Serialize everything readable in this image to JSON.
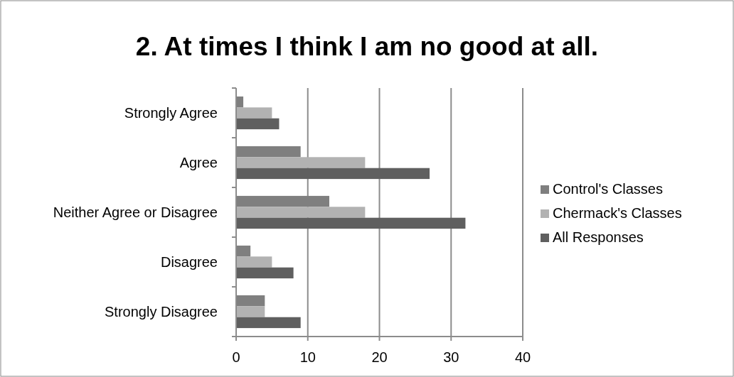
{
  "chart_data": {
    "type": "bar",
    "orientation": "horizontal",
    "title": "2. At times I think I am no good at all.",
    "categories": [
      "Strongly Agree",
      "Agree",
      "Neither Agree or Disagree",
      "Disagree",
      "Strongly Disagree"
    ],
    "series": [
      {
        "name": "Control's Classes",
        "color": "#7f7f7f",
        "values": [
          1,
          9,
          13,
          2,
          4
        ]
      },
      {
        "name": "Chermack's Classes",
        "color": "#b2b2b2",
        "values": [
          5,
          18,
          18,
          5,
          4
        ]
      },
      {
        "name": "All Responses",
        "color": "#5f5f5f",
        "values": [
          6,
          27,
          32,
          8,
          9
        ]
      }
    ],
    "xlim": [
      0,
      40
    ],
    "xticks": [
      0,
      10,
      20,
      30,
      40
    ],
    "grid": "x",
    "legend": "right"
  }
}
